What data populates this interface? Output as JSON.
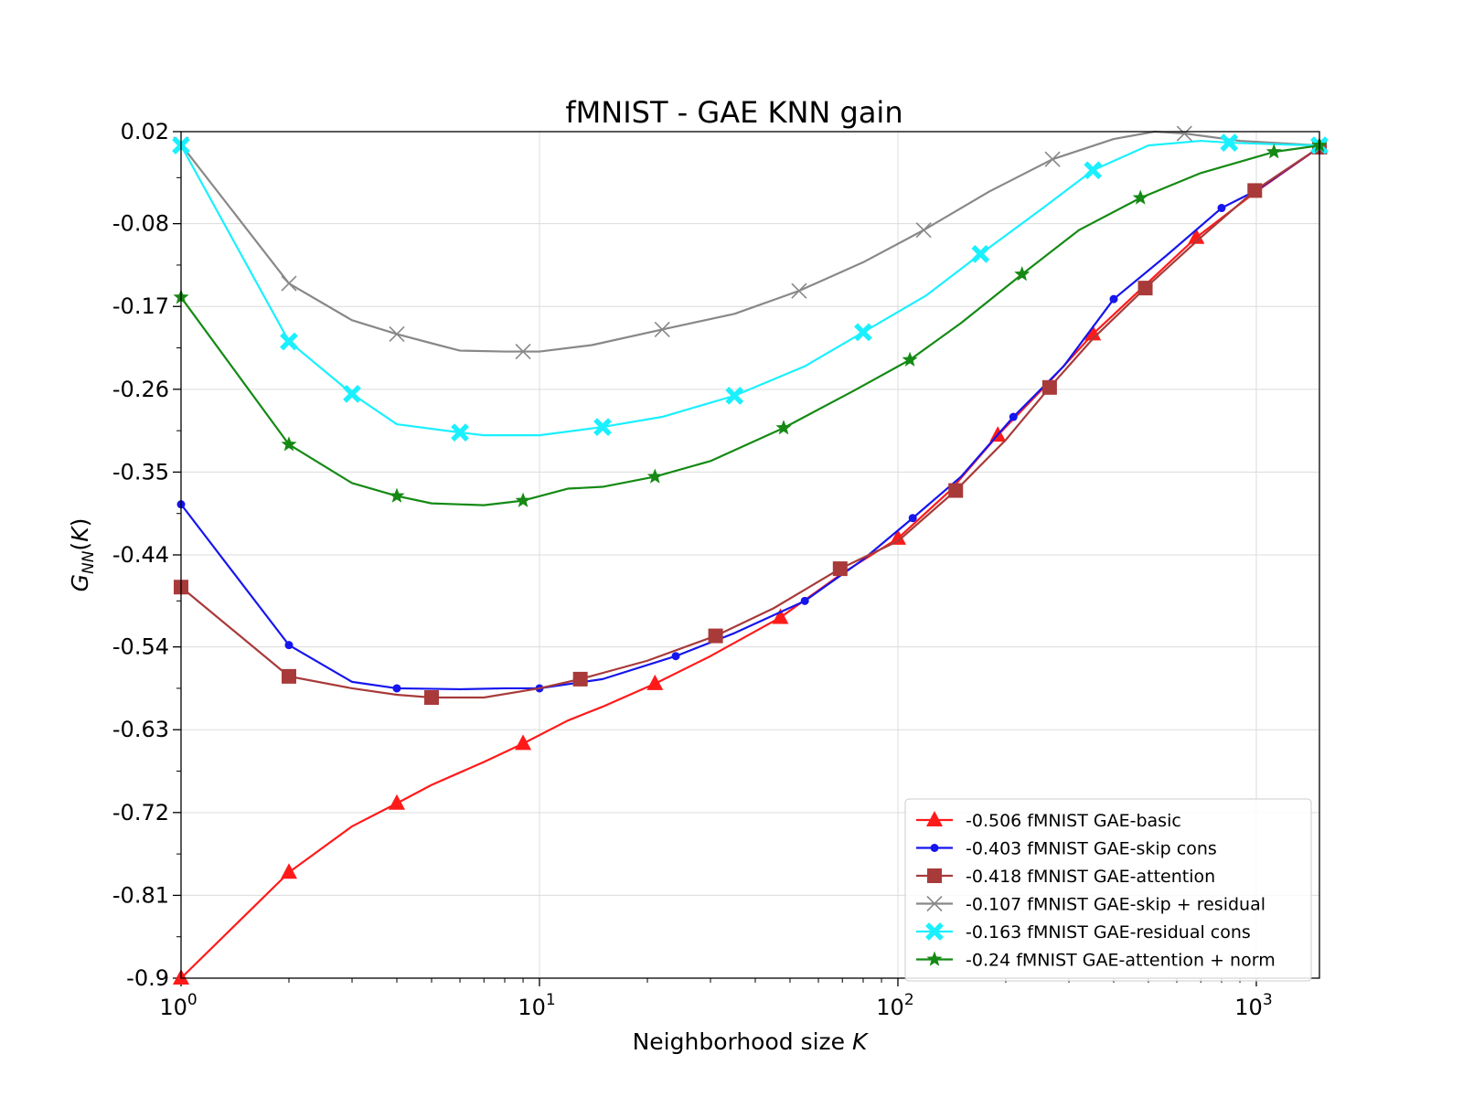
{
  "chart_data": {
    "type": "line",
    "title": "fMNIST - GAE KNN gain",
    "xlabel": "Neighborhood size K",
    "ylabel": "G_NN(K)",
    "xscale": "log",
    "xlim": [
      1,
      1500
    ],
    "ylim": [
      -0.9,
      0.02
    ],
    "x_tick_labels": [
      {
        "base": "10",
        "exp": "0",
        "value": 1
      },
      {
        "base": "10",
        "exp": "1",
        "value": 10
      },
      {
        "base": "10",
        "exp": "2",
        "value": 100
      },
      {
        "base": "10",
        "exp": "3",
        "value": 1000
      }
    ],
    "y_ticks": [
      0.02,
      -0.08,
      -0.17,
      -0.26,
      -0.35,
      -0.44,
      -0.54,
      -0.63,
      -0.72,
      -0.81,
      -0.9
    ],
    "y_tick_labels": [
      "0.02",
      "-0.08",
      "-0.17",
      "-0.26",
      "-0.35",
      "-0.44",
      "-0.54",
      "-0.63",
      "-0.72",
      "-0.81",
      "-0.9"
    ],
    "grid": true,
    "legend_position": "lower-right",
    "series": [
      {
        "name": "-0.506 fMNIST GAE-basic",
        "color": "#ff1a1a",
        "marker": "triangle",
        "markers_at": [
          1,
          2,
          4,
          9,
          21,
          47,
          100,
          190,
          350,
          680,
          1500
        ],
        "points": [
          [
            1,
            -0.9
          ],
          [
            2,
            -0.785
          ],
          [
            3,
            -0.735
          ],
          [
            4,
            -0.71
          ],
          [
            5,
            -0.69
          ],
          [
            7,
            -0.665
          ],
          [
            9,
            -0.645
          ],
          [
            12,
            -0.62
          ],
          [
            15,
            -0.605
          ],
          [
            21,
            -0.58
          ],
          [
            30,
            -0.55
          ],
          [
            47,
            -0.508
          ],
          [
            70,
            -0.46
          ],
          [
            100,
            -0.422
          ],
          [
            140,
            -0.37
          ],
          [
            190,
            -0.31
          ],
          [
            260,
            -0.255
          ],
          [
            350,
            -0.2
          ],
          [
            480,
            -0.15
          ],
          [
            680,
            -0.095
          ],
          [
            1000,
            -0.045
          ],
          [
            1500,
            0.003
          ]
        ]
      },
      {
        "name": "-0.403 fMNIST GAE-skip cons",
        "color": "#1515ee",
        "marker": "dot",
        "markers_at": [
          1,
          2,
          4,
          10,
          24,
          55,
          110,
          210,
          400,
          800,
          1500
        ],
        "points": [
          [
            1,
            -0.385
          ],
          [
            2,
            -0.538
          ],
          [
            3,
            -0.578
          ],
          [
            4,
            -0.585
          ],
          [
            6,
            -0.586
          ],
          [
            8,
            -0.585
          ],
          [
            10,
            -0.585
          ],
          [
            15,
            -0.575
          ],
          [
            24,
            -0.55
          ],
          [
            35,
            -0.525
          ],
          [
            55,
            -0.49
          ],
          [
            80,
            -0.445
          ],
          [
            110,
            -0.4
          ],
          [
            150,
            -0.355
          ],
          [
            210,
            -0.29
          ],
          [
            290,
            -0.235
          ],
          [
            400,
            -0.162
          ],
          [
            560,
            -0.115
          ],
          [
            800,
            -0.063
          ],
          [
            1000,
            -0.044
          ],
          [
            1500,
            0.003
          ]
        ]
      },
      {
        "name": "-0.418 fMNIST GAE-attention",
        "color": "#a83a3a",
        "marker": "square",
        "markers_at": [
          1,
          2,
          5,
          13,
          31,
          69,
          145,
          265,
          490,
          990,
          1500
        ],
        "points": [
          [
            1,
            -0.475
          ],
          [
            2,
            -0.572
          ],
          [
            3,
            -0.585
          ],
          [
            4,
            -0.592
          ],
          [
            5,
            -0.595
          ],
          [
            7,
            -0.595
          ],
          [
            10,
            -0.585
          ],
          [
            13,
            -0.575
          ],
          [
            20,
            -0.555
          ],
          [
            31,
            -0.528
          ],
          [
            45,
            -0.498
          ],
          [
            69,
            -0.455
          ],
          [
            100,
            -0.425
          ],
          [
            145,
            -0.37
          ],
          [
            200,
            -0.315
          ],
          [
            265,
            -0.258
          ],
          [
            350,
            -0.205
          ],
          [
            490,
            -0.15
          ],
          [
            700,
            -0.095
          ],
          [
            990,
            -0.044
          ],
          [
            1500,
            0.003
          ]
        ]
      },
      {
        "name": "-0.107 fMNIST GAE-skip + residual",
        "color": "#888888",
        "marker": "x",
        "markers_at": [
          1,
          2,
          4,
          9,
          22,
          53,
          118,
          270,
          630,
          1500
        ],
        "points": [
          [
            1,
            0.006
          ],
          [
            2,
            -0.145
          ],
          [
            3,
            -0.185
          ],
          [
            4,
            -0.2
          ],
          [
            5,
            -0.21
          ],
          [
            6,
            -0.218
          ],
          [
            8,
            -0.219
          ],
          [
            10,
            -0.219
          ],
          [
            14,
            -0.212
          ],
          [
            22,
            -0.195
          ],
          [
            35,
            -0.178
          ],
          [
            53,
            -0.153
          ],
          [
            80,
            -0.122
          ],
          [
            118,
            -0.087
          ],
          [
            180,
            -0.045
          ],
          [
            270,
            -0.01
          ],
          [
            400,
            0.012
          ],
          [
            520,
            0.02
          ],
          [
            630,
            0.018
          ],
          [
            900,
            0.01
          ],
          [
            1500,
            0.005
          ]
        ]
      },
      {
        "name": "-0.163 fMNIST GAE-residual cons",
        "color": "#1af0ff",
        "marker": "xbold",
        "markers_at": [
          1,
          2,
          3,
          6,
          15,
          35,
          80,
          170,
          350,
          840,
          1500
        ],
        "points": [
          [
            1,
            0.005
          ],
          [
            2,
            -0.208
          ],
          [
            3,
            -0.265
          ],
          [
            4,
            -0.298
          ],
          [
            6,
            -0.307
          ],
          [
            7,
            -0.31
          ],
          [
            10,
            -0.31
          ],
          [
            15,
            -0.301
          ],
          [
            22,
            -0.29
          ],
          [
            35,
            -0.267
          ],
          [
            55,
            -0.235
          ],
          [
            80,
            -0.198
          ],
          [
            120,
            -0.158
          ],
          [
            170,
            -0.113
          ],
          [
            250,
            -0.065
          ],
          [
            350,
            -0.022
          ],
          [
            500,
            0.005
          ],
          [
            700,
            0.01
          ],
          [
            840,
            0.008
          ],
          [
            1200,
            0.006
          ],
          [
            1500,
            0.005
          ]
        ]
      },
      {
        "name": "-0.24 fMNIST GAE-attention + norm",
        "color": "#148a14",
        "marker": "star",
        "markers_at": [
          1,
          2,
          4,
          9,
          21,
          48,
          108,
          222,
          475,
          1120,
          1500
        ],
        "points": [
          [
            1,
            -0.16
          ],
          [
            2,
            -0.32
          ],
          [
            3,
            -0.362
          ],
          [
            4,
            -0.376
          ],
          [
            5,
            -0.384
          ],
          [
            7,
            -0.386
          ],
          [
            9,
            -0.381
          ],
          [
            12,
            -0.368
          ],
          [
            15,
            -0.366
          ],
          [
            21,
            -0.355
          ],
          [
            30,
            -0.338
          ],
          [
            48,
            -0.302
          ],
          [
            75,
            -0.262
          ],
          [
            108,
            -0.228
          ],
          [
            150,
            -0.188
          ],
          [
            222,
            -0.135
          ],
          [
            320,
            -0.087
          ],
          [
            475,
            -0.052
          ],
          [
            700,
            -0.025
          ],
          [
            1120,
            -0.002
          ],
          [
            1500,
            0.005
          ]
        ]
      }
    ]
  }
}
